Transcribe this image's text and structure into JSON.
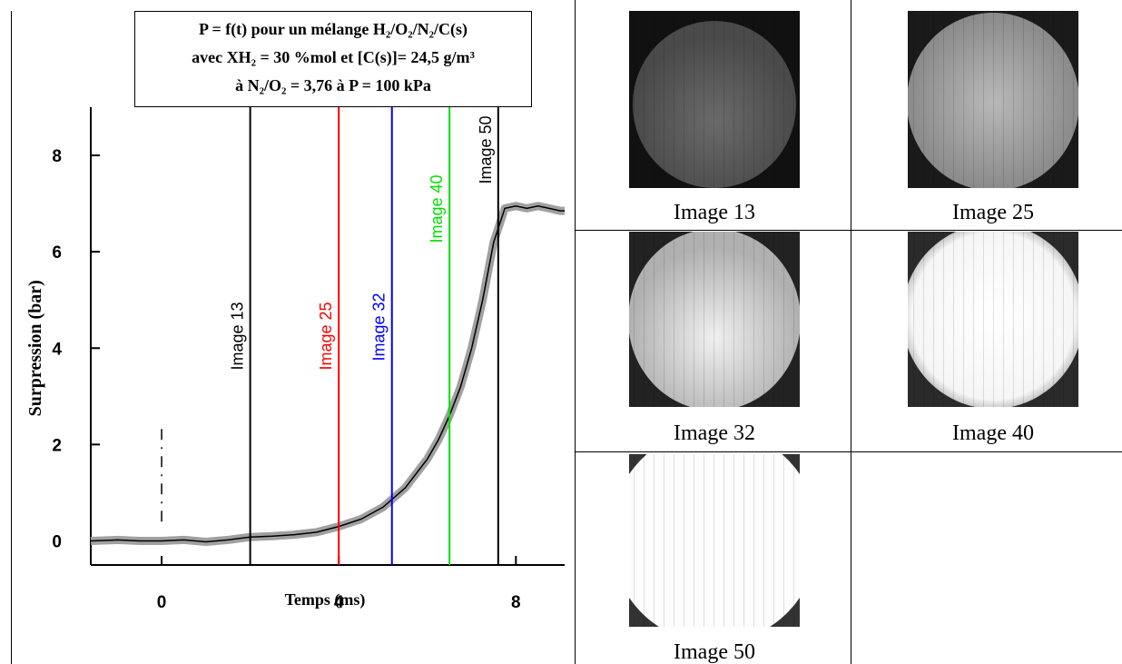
{
  "chart_data": {
    "type": "line",
    "title": [
      "P = f(t) pour un mélange H₂/O₂/N₂/C(s)",
      "avec XH₂ = 30 %mol et [C(s)]= 24,5 g/m³",
      "à N₂/O₂ = 3,76 à P = 100 kPa"
    ],
    "x_label": "Temps (ms)",
    "y_label": "Surpression (bar)",
    "xlim": [
      -1.6,
      9.1
    ],
    "ylim": [
      -0.5,
      9
    ],
    "xticks": [
      0,
      4,
      8
    ],
    "yticks": [
      0,
      2,
      4,
      6,
      8
    ],
    "x": [
      -1.6,
      -1,
      -0.5,
      0,
      0.5,
      1,
      1.5,
      2,
      2.5,
      3,
      3.5,
      4,
      4.5,
      5,
      5.5,
      6,
      6.25,
      6.5,
      6.75,
      7,
      7.25,
      7.5,
      7.75,
      8,
      8.25,
      8.5,
      8.75,
      9,
      9.1
    ],
    "series": [
      {
        "color": "#000000",
        "band_color": "#a0a0a0",
        "values": [
          0,
          0.02,
          0,
          0,
          0.02,
          -0.02,
          0.02,
          0.08,
          0.1,
          0.13,
          0.18,
          0.3,
          0.45,
          0.7,
          1.1,
          1.7,
          2.1,
          2.6,
          3.2,
          4.0,
          5.0,
          6.2,
          6.9,
          6.95,
          6.9,
          6.95,
          6.9,
          6.85,
          6.85
        ]
      }
    ],
    "ignition": {
      "x": 0,
      "ymin": 0.4,
      "ymax": 2.4
    },
    "markers": [
      {
        "x": 2,
        "label": "Image 13",
        "color": "#000000"
      },
      {
        "x": 4,
        "label": "Image 25",
        "color": "#ff0000"
      },
      {
        "x": 5.2,
        "label": "Image 32",
        "color": "#0000ff"
      },
      {
        "x": 6.5,
        "label": "Image 40",
        "color": "#00e000"
      },
      {
        "x": 7.6,
        "label": "Image 50",
        "color": "#000000"
      }
    ]
  },
  "images": [
    {
      "caption": "Image 13"
    },
    {
      "caption": "Image 25"
    },
    {
      "caption": "Image 32"
    },
    {
      "caption": "Image 40"
    },
    {
      "caption": "Image 50"
    }
  ]
}
